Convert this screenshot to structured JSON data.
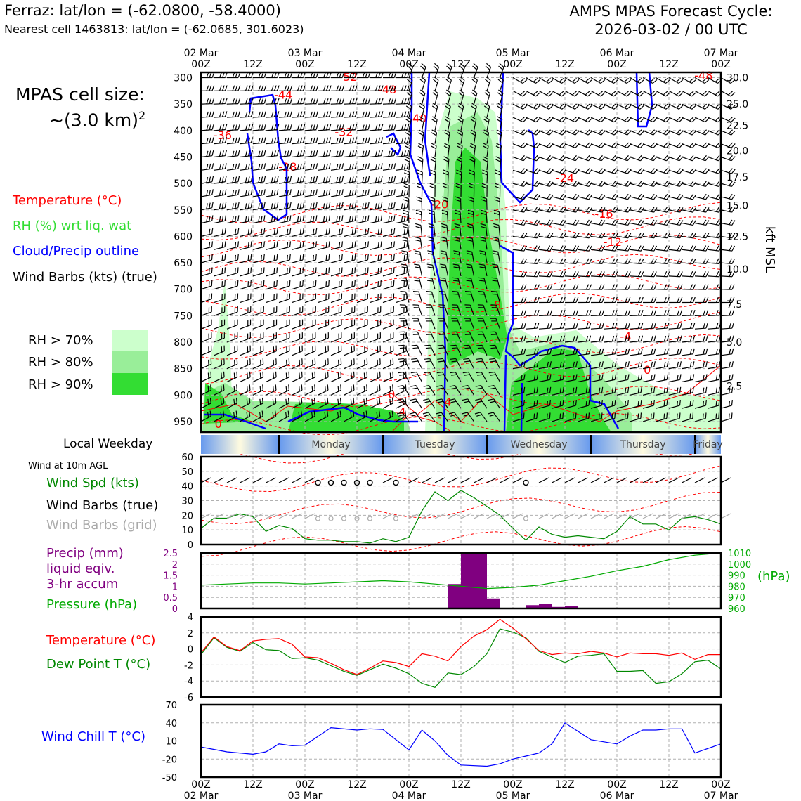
{
  "header": {
    "location": "Ferraz: lat/lon = (-62.0800, -58.4000)",
    "nearest_cell": "Nearest cell 1463813: lat/lon = (-62.0685, 301.6023)",
    "cycle_line1": "AMPS MPAS Forecast Cycle:",
    "cycle_line2": "2026-03-02 / 00 UTC"
  },
  "cell_size": {
    "label": "MPAS cell size:",
    "value": "~(3.0 km)",
    "exponent": "2"
  },
  "legend": {
    "temperature": "Temperature (°C)",
    "rh": "RH (%) wrt liq. wat",
    "cloud": "Cloud/Precip outline",
    "barbs": "Wind Barbs (kts) (true)",
    "rh70": "RH > 70%",
    "rh80": "RH > 80%",
    "rh90": "RH > 90%"
  },
  "colors": {
    "temperature": "#ff0000",
    "rh": "#33dd33",
    "cloud": "#0000ff",
    "rh70": "#ccffcc",
    "rh80": "#99ee99",
    "rh90": "#33dd33",
    "precip": "#800080",
    "pressure": "#00aa00",
    "windspd": "#008800",
    "barbs_grid": "#aaaaaa",
    "windchill": "#0000ff",
    "dewpoint": "#008800"
  },
  "time_axis": {
    "top_ticks": [
      {
        "l1": "02 Mar",
        "l2": "00Z"
      },
      {
        "l1": "",
        "l2": "12Z"
      },
      {
        "l1": "03 Mar",
        "l2": "00Z"
      },
      {
        "l1": "",
        "l2": "12Z"
      },
      {
        "l1": "04 Mar",
        "l2": "00Z"
      },
      {
        "l1": "",
        "l2": "12Z"
      },
      {
        "l1": "05 Mar",
        "l2": "00Z"
      },
      {
        "l1": "",
        "l2": "12Z"
      },
      {
        "l1": "06 Mar",
        "l2": "00Z"
      },
      {
        "l1": "",
        "l2": "12Z"
      },
      {
        "l1": "07 Mar",
        "l2": "00Z"
      }
    ],
    "bottom_ticks": [
      {
        "l1": "00Z",
        "l2": "02 Mar"
      },
      {
        "l1": "12Z",
        "l2": ""
      },
      {
        "l1": "00Z",
        "l2": "03 Mar"
      },
      {
        "l1": "12Z",
        "l2": ""
      },
      {
        "l1": "00Z",
        "l2": "04 Mar"
      },
      {
        "l1": "12Z",
        "l2": ""
      },
      {
        "l1": "00Z",
        "l2": "05 Mar"
      },
      {
        "l1": "12Z",
        "l2": ""
      },
      {
        "l1": "00Z",
        "l2": "06 Mar"
      },
      {
        "l1": "12Z",
        "l2": ""
      },
      {
        "l1": "00Z",
        "l2": "07 Mar"
      }
    ]
  },
  "weekday": {
    "title": "Local Weekday",
    "days": [
      "Monday",
      "Tuesday",
      "Wednesday",
      "Thursday",
      "Friday"
    ]
  },
  "chart_data": [
    {
      "type": "heatmap",
      "panel": "cross-section",
      "x": "forecast hour 0-120 (02 Mar 00Z - 07 Mar 00Z)",
      "ylabel_left": "hPa",
      "ylabel_right": "kft MSL",
      "pressure_ticks": [
        300,
        350,
        400,
        450,
        500,
        550,
        600,
        650,
        700,
        750,
        800,
        850,
        900,
        950
      ],
      "height_ticks": [
        {
          "kft": "30.0",
          "p": 300
        },
        {
          "kft": "25.0",
          "p": 350
        },
        {
          "kft": "22.5",
          "p": 390
        },
        {
          "kft": "20.0",
          "p": 438
        },
        {
          "kft": "17.5",
          "p": 488
        },
        {
          "kft": "15.0",
          "p": 542
        },
        {
          "kft": "12.5",
          "p": 600
        },
        {
          "kft": "10.0",
          "p": 662
        },
        {
          "kft": "7.5",
          "p": 728
        },
        {
          "kft": "5.0",
          "p": 800
        },
        {
          "kft": "2.5",
          "p": 883
        }
      ],
      "temperature_labels": [
        {
          "t": "-52",
          "h": 34,
          "p": 306
        },
        {
          "t": "-48",
          "h": 43,
          "p": 330
        },
        {
          "t": "-44",
          "h": 19,
          "p": 340
        },
        {
          "t": "-40",
          "h": 50,
          "p": 384
        },
        {
          "t": "-36",
          "h": 5,
          "p": 416
        },
        {
          "t": "-32",
          "h": 33,
          "p": 410
        },
        {
          "t": "-28",
          "h": 20,
          "p": 476
        },
        {
          "t": "-24",
          "h": 84,
          "p": 497
        },
        {
          "t": "-20",
          "h": 55,
          "p": 547
        },
        {
          "t": "-16",
          "h": 93,
          "p": 565
        },
        {
          "t": "-12",
          "h": 95,
          "p": 618
        },
        {
          "t": "-8",
          "h": 68,
          "p": 737
        },
        {
          "t": "-4",
          "h": 98,
          "p": 797
        },
        {
          "t": "0",
          "h": 103,
          "p": 860
        },
        {
          "t": "0",
          "h": 44,
          "p": 906
        },
        {
          "t": "0",
          "h": 4,
          "p": 962
        },
        {
          "t": "4",
          "h": 57,
          "p": 920
        },
        {
          "t": "-4",
          "h": 46,
          "p": 939
        },
        {
          "t": "-48",
          "h": 116,
          "p": 303
        }
      ]
    },
    {
      "type": "line",
      "panel": "Wind at 10m AGL",
      "ylabel": "Wind Spd (kts)",
      "ylim": [
        0,
        60
      ],
      "yticks": [
        0,
        10,
        20,
        30,
        40,
        50,
        60
      ],
      "x": [
        0,
        3,
        6,
        9,
        12,
        15,
        18,
        21,
        24,
        27,
        30,
        33,
        36,
        39,
        42,
        45,
        48,
        51,
        54,
        57,
        60,
        63,
        66,
        69,
        72,
        75,
        78,
        81,
        84,
        87,
        90,
        93,
        96,
        99,
        102,
        105,
        108,
        111,
        114,
        117,
        120
      ],
      "values": [
        11,
        18,
        18,
        21,
        19,
        9,
        13,
        11,
        4,
        3,
        3,
        2,
        2,
        1,
        4,
        2,
        5,
        23,
        36,
        30,
        37,
        32,
        26,
        20,
        11,
        3,
        12,
        7,
        5,
        6,
        5,
        4,
        9,
        19,
        14,
        14,
        10,
        18,
        19,
        17,
        14
      ],
      "legend": [
        "Wind Spd (kts)",
        "Wind Barbs (true)",
        "Wind Barbs (grid)"
      ]
    },
    {
      "type": "bar",
      "panel": "Precip / Pressure",
      "ylabel": "Precip (mm) liquid eqiv. 3-hr accum",
      "ylim": [
        0,
        2.5
      ],
      "yticks": [
        0,
        0.5,
        1.0,
        1.5,
        2.0,
        2.5
      ],
      "bars": [
        {
          "h": 57,
          "v": 1.1
        },
        {
          "h": 60,
          "v": 2.5
        },
        {
          "h": 63,
          "v": 2.5
        },
        {
          "h": 66,
          "v": 0.45
        },
        {
          "h": 75,
          "v": 0.15
        },
        {
          "h": 78,
          "v": 0.2
        },
        {
          "h": 81,
          "v": 0.07
        },
        {
          "h": 84,
          "v": 0.1
        }
      ],
      "pressure": {
        "name": "Pressure (hPa)",
        "ylim": [
          960,
          1010
        ],
        "yticks": [
          960,
          970,
          980,
          990,
          1000,
          1010
        ],
        "x": [
          0,
          6,
          12,
          18,
          24,
          30,
          36,
          42,
          48,
          54,
          60,
          66,
          72,
          78,
          84,
          90,
          96,
          102,
          108,
          114,
          120
        ],
        "values": [
          981,
          982,
          983,
          983,
          982,
          983,
          984,
          985,
          984,
          982,
          980,
          978,
          979,
          981,
          985,
          989,
          994,
          998,
          1004,
          1008,
          1010
        ]
      }
    },
    {
      "type": "line",
      "panel": "Temperature / Dew Point",
      "ylim": [
        -6,
        4
      ],
      "yticks": [
        -6,
        -4,
        -2,
        0,
        2,
        4
      ],
      "x": [
        0,
        3,
        6,
        9,
        12,
        15,
        18,
        21,
        24,
        27,
        30,
        33,
        36,
        39,
        42,
        45,
        48,
        51,
        54,
        57,
        60,
        63,
        66,
        69,
        72,
        75,
        78,
        81,
        84,
        87,
        90,
        93,
        96,
        99,
        102,
        105,
        108,
        111,
        114,
        117,
        120
      ],
      "series": [
        {
          "name": "Temperature (°C)",
          "values": [
            -0.5,
            1.5,
            0.3,
            -0.2,
            1.0,
            1.2,
            1.3,
            0.6,
            -1.0,
            -1.1,
            -1.8,
            -2.6,
            -3.2,
            -2.4,
            -1.5,
            -1.7,
            -2.2,
            -0.6,
            -0.9,
            -1.5,
            0.3,
            1.6,
            2.4,
            3.7,
            2.6,
            1.3,
            -0.2,
            -0.7,
            -0.5,
            -0.6,
            -0.3,
            -0.5,
            -1.0,
            -0.5,
            -0.6,
            -0.6,
            -0.8,
            -0.5,
            -1.3,
            -0.7,
            -0.7
          ]
        },
        {
          "name": "Dew Point T (°C)",
          "values": [
            -0.7,
            1.4,
            0.2,
            -0.3,
            0.8,
            -0.1,
            -0.2,
            -1.2,
            -1.1,
            -1.4,
            -2.1,
            -2.8,
            -3.3,
            -2.6,
            -1.9,
            -2.4,
            -3.1,
            -4.3,
            -4.8,
            -3.0,
            -3.2,
            -2.2,
            -0.6,
            2.5,
            2.1,
            1.4,
            -0.3,
            -1.0,
            -1.7,
            -0.9,
            -0.8,
            -0.6,
            -2.8,
            -2.8,
            -2.7,
            -4.3,
            -4.1,
            -3.1,
            -1.6,
            -1.4,
            -2.5
          ]
        }
      ]
    },
    {
      "type": "line",
      "panel": "Wind Chill",
      "ylabel": "Wind Chill T (°C)",
      "ylim": [
        -50,
        70
      ],
      "yticks": [
        -50,
        -20,
        10,
        40,
        70
      ],
      "x": [
        0,
        6,
        12,
        15,
        18,
        21,
        24,
        30,
        36,
        39,
        42,
        48,
        51,
        54,
        57,
        60,
        66,
        69,
        72,
        75,
        78,
        81,
        84,
        90,
        96,
        99,
        102,
        105,
        108,
        111,
        114,
        120
      ],
      "values": [
        0,
        -8,
        -12,
        -8,
        5,
        2,
        3,
        32,
        28,
        30,
        29,
        -5,
        28,
        10,
        -14,
        -30,
        -32,
        -28,
        -20,
        -15,
        -10,
        5,
        40,
        12,
        5,
        18,
        28,
        28,
        30,
        30,
        -10,
        5
      ]
    }
  ]
}
